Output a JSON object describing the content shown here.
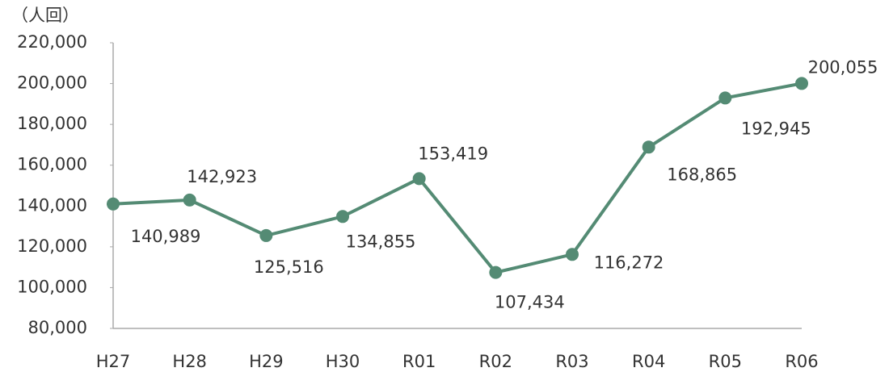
{
  "chart_data": {
    "type": "line",
    "ylabel": "（人回）",
    "categories": [
      "H27",
      "H28",
      "H29",
      "H30",
      "R01",
      "R02",
      "R03",
      "R04",
      "R05",
      "R06"
    ],
    "series": [
      {
        "name": null,
        "color": "#548b74",
        "values": [
          140989,
          142923,
          125516,
          134855,
          153419,
          107434,
          116272,
          168865,
          192945,
          200055
        ],
        "value_labels": [
          "140,989",
          "142,923",
          "125,516",
          "134,855",
          "153,419",
          "107,434",
          "116,272",
          "168,865",
          "192,945",
          "200,055"
        ]
      }
    ],
    "ylim": [
      80000,
      220000
    ],
    "yticks": [
      {
        "value": 80000,
        "label": "80,000"
      },
      {
        "value": 100000,
        "label": "100,000"
      },
      {
        "value": 120000,
        "label": "120,000"
      },
      {
        "value": 140000,
        "label": "140,000"
      },
      {
        "value": 160000,
        "label": "160,000"
      },
      {
        "value": 180000,
        "label": "180,000"
      },
      {
        "value": 200000,
        "label": "200,000"
      },
      {
        "value": 220000,
        "label": "220,000"
      }
    ],
    "grid": false
  }
}
